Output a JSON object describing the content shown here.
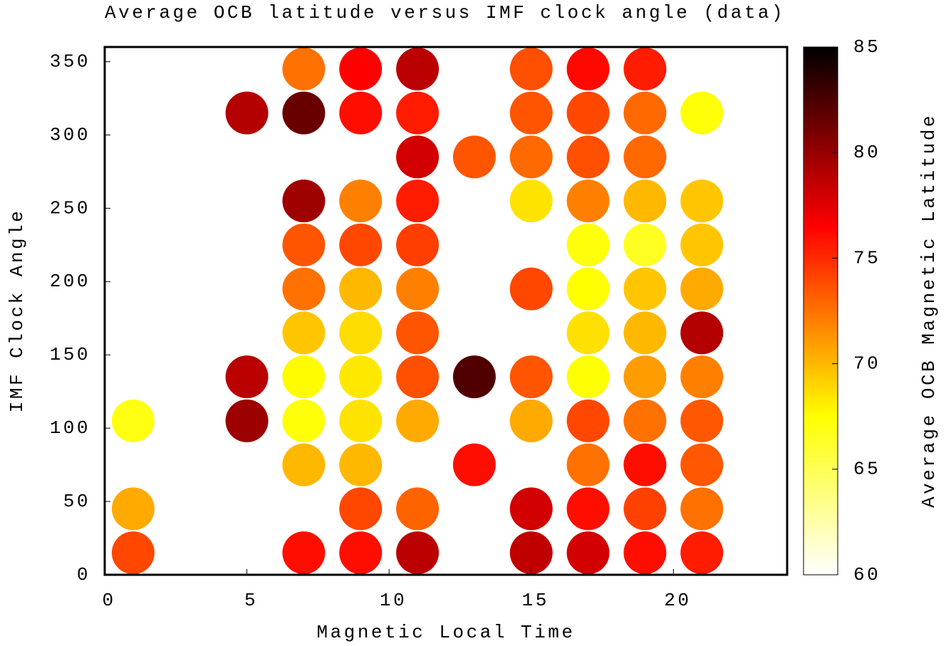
{
  "chart_data": {
    "type": "scatter",
    "title": "Average OCB latitude versus IMF clock angle (data)",
    "x_label": "Magnetic Local Time",
    "y_label": "IMF Clock Angle",
    "colorbar_label": "Average OCB Magnetic Latitude",
    "xlim": [
      0,
      24
    ],
    "xticks": [
      0,
      5,
      10,
      15,
      20
    ],
    "ylim": [
      0,
      360
    ],
    "yticks": [
      0,
      50,
      100,
      150,
      200,
      250,
      300,
      350
    ],
    "clim": [
      60,
      85
    ],
    "cticks": [
      60,
      65,
      70,
      75,
      80,
      85
    ],
    "colormap": [
      [
        60,
        "#ffffff"
      ],
      [
        67.5,
        "#ffff00"
      ],
      [
        76.5,
        "#ff0000"
      ],
      [
        85,
        "#000000"
      ]
    ],
    "x": [
      1,
      1,
      1,
      5,
      5,
      5,
      7,
      7,
      7,
      7,
      7,
      7,
      7,
      7,
      7,
      7,
      9,
      9,
      9,
      9,
      9,
      9,
      9,
      9,
      9,
      9,
      9,
      11,
      11,
      11,
      11,
      11,
      11,
      11,
      11,
      11,
      11,
      11,
      13,
      13,
      13,
      15,
      15,
      15,
      15,
      15,
      15,
      15,
      15,
      15,
      17,
      17,
      17,
      17,
      17,
      17,
      17,
      17,
      17,
      17,
      17,
      17,
      19,
      19,
      19,
      19,
      19,
      19,
      19,
      19,
      19,
      19,
      19,
      19,
      21,
      21,
      21,
      21,
      21,
      21,
      21,
      21,
      21,
      21
    ],
    "y": [
      15,
      45,
      105,
      105,
      135,
      315,
      15,
      75,
      105,
      135,
      165,
      195,
      225,
      255,
      315,
      345,
      15,
      45,
      75,
      105,
      135,
      165,
      195,
      225,
      255,
      315,
      345,
      15,
      45,
      105,
      135,
      165,
      195,
      225,
      255,
      285,
      315,
      345,
      75,
      135,
      285,
      15,
      45,
      105,
      135,
      195,
      255,
      285,
      315,
      345,
      15,
      45,
      75,
      105,
      135,
      165,
      195,
      225,
      255,
      285,
      315,
      345,
      15,
      45,
      75,
      105,
      135,
      165,
      195,
      225,
      255,
      285,
      315,
      345,
      15,
      45,
      75,
      105,
      135,
      165,
      195,
      225,
      255,
      315
    ],
    "values": [
      74,
      70.5,
      67,
      79.8,
      78.8,
      79,
      76,
      70,
      67.3,
      67.6,
      69.5,
      72.5,
      73.5,
      79.7,
      81.5,
      72.5,
      76,
      74,
      70,
      68.5,
      68.3,
      68.7,
      70,
      74,
      72,
      76,
      76.5,
      78.8,
      73,
      70.5,
      73.7,
      73.5,
      72,
      74.3,
      75.5,
      78,
      75.5,
      78.8,
      76,
      82.3,
      73.5,
      78.6,
      78,
      70.5,
      73.5,
      74,
      68.5,
      72.8,
      73.5,
      73.7,
      78,
      76,
      72.5,
      74,
      67.4,
      68.6,
      67.5,
      67.2,
      72,
      73.7,
      74,
      76.2,
      76,
      74.2,
      76,
      72.5,
      71,
      70,
      69.5,
      66.5,
      70,
      72.8,
      72.8,
      75.5,
      75.5,
      72.5,
      73.4,
      73.4,
      72,
      79,
      70.5,
      69.5,
      69.5,
      67.3
    ]
  }
}
